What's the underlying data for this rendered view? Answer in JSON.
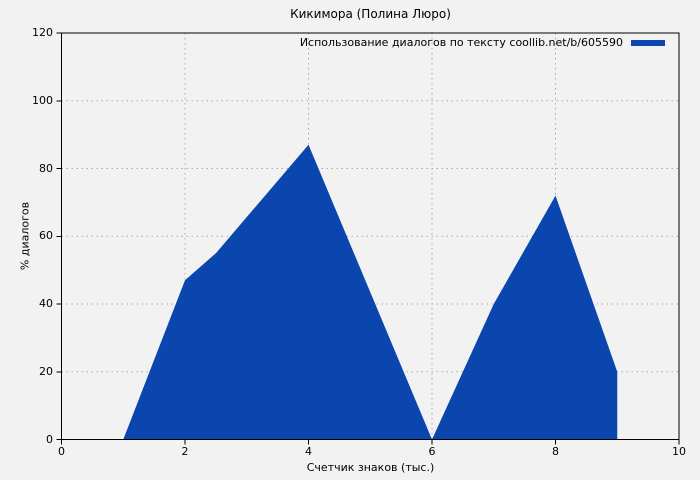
{
  "chart_data": {
    "type": "area",
    "title": "Кикимора (Полина Люро)",
    "xlabel": "Счетчик знаков (тыс.)",
    "ylabel": "% диалогов",
    "xlim": [
      0,
      10
    ],
    "ylim": [
      0,
      120
    ],
    "xticks": [
      0,
      2,
      4,
      6,
      8,
      10
    ],
    "yticks": [
      0,
      20,
      40,
      60,
      80,
      100,
      120
    ],
    "grid": true,
    "legend_position": "top-right-inside",
    "series": [
      {
        "name": "Использование диалогов по тексту coollib.net/b/605590",
        "color": "#0a46ad",
        "points": [
          [
            1,
            0
          ],
          [
            2,
            47
          ],
          [
            2.5,
            55
          ],
          [
            4,
            87
          ],
          [
            6,
            0
          ],
          [
            7,
            40
          ],
          [
            8,
            72
          ],
          [
            9,
            20
          ],
          [
            9,
            0
          ]
        ]
      }
    ]
  },
  "colors": {
    "background": "#f2f2f2",
    "grid": "#a9a9a9",
    "frame": "#000000",
    "text": "#000000",
    "accent": "#0a46ad"
  }
}
